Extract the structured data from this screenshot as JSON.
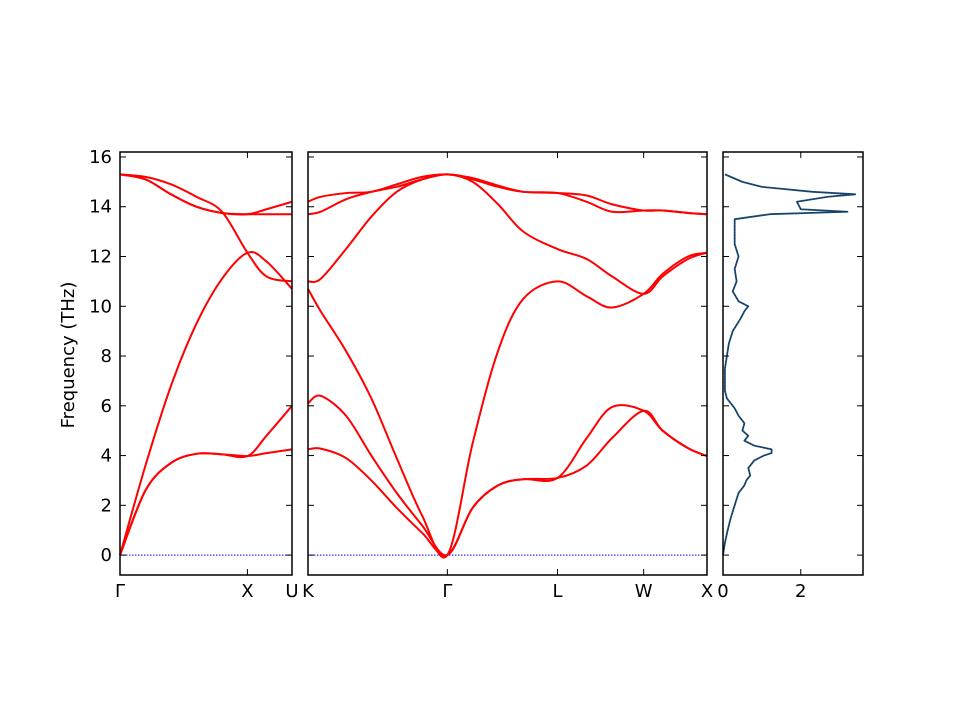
{
  "chart_data": {
    "type": "line",
    "ylabel": "Frequency (THz)",
    "ylim": [
      -0.8,
      16.2
    ],
    "y_ticks": [
      "0",
      "2",
      "4",
      "6",
      "8",
      "10",
      "12",
      "14",
      "16"
    ],
    "colors": {
      "bands": "#ff0000",
      "zero_line": "#0000ff",
      "dos": "#1f4e79"
    },
    "band_panels": [
      {
        "path": [
          "Γ",
          "X",
          "U"
        ],
        "tick_labels": [
          "Γ",
          "X",
          "U"
        ],
        "x_range": [
          0,
          1.35
        ],
        "tick_positions": [
          0,
          1.0,
          1.35
        ],
        "bands": [
          {
            "x": [
              0,
              0.2,
              0.4,
              0.6,
              0.8,
              1.0,
              1.15,
              1.35
            ],
            "y": [
              0,
              2.6,
              3.7,
              4.07,
              4.05,
              3.98,
              4.1,
              4.25
            ]
          },
          {
            "x": [
              0,
              0.2,
              0.4,
              0.6,
              0.8,
              1.0,
              1.15,
              1.35
            ],
            "y": [
              0,
              2.6,
              3.7,
              4.07,
              4.05,
              3.98,
              4.8,
              6.0
            ]
          },
          {
            "x": [
              0,
              0.2,
              0.4,
              0.6,
              0.8,
              1.0,
              1.15,
              1.35
            ],
            "y": [
              0,
              3.6,
              6.8,
              9.3,
              11.1,
              12.15,
              11.8,
              10.7
            ]
          },
          {
            "x": [
              0,
              0.2,
              0.4,
              0.6,
              0.8,
              1.0,
              1.15,
              1.35
            ],
            "y": [
              15.3,
              15.2,
              14.9,
              14.4,
              13.8,
              12.15,
              11.2,
              11.0
            ]
          },
          {
            "x": [
              0,
              0.2,
              0.4,
              0.6,
              0.8,
              1.0,
              1.15,
              1.35
            ],
            "y": [
              15.3,
              15.1,
              14.5,
              14.0,
              13.75,
              13.7,
              13.7,
              13.7
            ]
          },
          {
            "x": [
              0,
              0.2,
              0.4,
              0.6,
              0.8,
              1.0,
              1.15,
              1.35
            ],
            "y": [
              15.3,
              15.1,
              14.5,
              14.0,
              13.75,
              13.7,
              13.9,
              14.2
            ]
          }
        ]
      },
      {
        "path": [
          "K",
          "Γ",
          "L",
          "W",
          "X"
        ],
        "tick_labels": [
          "K",
          "Γ",
          "L",
          "W",
          "X"
        ],
        "x_range": [
          0,
          3.15
        ],
        "tick_positions": [
          0,
          1.1,
          1.97,
          2.65,
          3.15
        ],
        "bands": [
          {
            "x": [
              0,
              0.1,
              0.3,
              0.5,
              0.7,
              0.9,
              1.1,
              1.3,
              1.5,
              1.7,
              1.97,
              2.2,
              2.4,
              2.65,
              2.8,
              3.0,
              3.15
            ],
            "y": [
              4.25,
              4.28,
              3.9,
              3.0,
              1.9,
              0.9,
              0,
              1.9,
              2.8,
              3.05,
              3.1,
              3.6,
              4.7,
              5.8,
              5.0,
              4.3,
              3.98
            ]
          },
          {
            "x": [
              0,
              0.1,
              0.3,
              0.5,
              0.7,
              0.9,
              1.1,
              1.3,
              1.5,
              1.7,
              1.97,
              2.2,
              2.4,
              2.65,
              2.8,
              3.0,
              3.15
            ],
            "y": [
              6.1,
              6.4,
              5.6,
              4.0,
              2.5,
              1.2,
              0,
              1.9,
              2.8,
              3.05,
              3.1,
              4.7,
              5.95,
              5.8,
              5.0,
              4.3,
              3.98
            ]
          },
          {
            "x": [
              0,
              0.1,
              0.3,
              0.5,
              0.7,
              0.9,
              1.1,
              1.3,
              1.5,
              1.7,
              1.97,
              2.2,
              2.4,
              2.65,
              2.8,
              3.0,
              3.15
            ],
            "y": [
              10.7,
              9.8,
              8.2,
              6.3,
              3.9,
              1.6,
              0,
              4.5,
              8.2,
              10.3,
              11.0,
              10.4,
              9.95,
              10.5,
              11.3,
              12.0,
              12.15
            ]
          },
          {
            "x": [
              0,
              0.1,
              0.3,
              0.5,
              0.7,
              0.9,
              1.1,
              1.3,
              1.5,
              1.7,
              1.97,
              2.2,
              2.4,
              2.65,
              2.8,
              3.0,
              3.15
            ],
            "y": [
              11.0,
              11.1,
              12.3,
              13.6,
              14.6,
              15.1,
              15.3,
              15.0,
              14.1,
              13.0,
              12.3,
              11.9,
              11.2,
              10.5,
              11.2,
              11.9,
              12.15
            ]
          },
          {
            "x": [
              0,
              0.1,
              0.3,
              0.5,
              0.7,
              0.9,
              1.1,
              1.3,
              1.5,
              1.7,
              1.97,
              2.2,
              2.4,
              2.65,
              2.8,
              3.0,
              3.15
            ],
            "y": [
              13.7,
              13.8,
              14.3,
              14.6,
              14.8,
              15.1,
              15.3,
              15.1,
              14.8,
              14.6,
              14.55,
              14.45,
              14.1,
              13.85,
              13.85,
              13.75,
              13.7
            ]
          },
          {
            "x": [
              0,
              0.1,
              0.3,
              0.5,
              0.7,
              0.9,
              1.1,
              1.3,
              1.5,
              1.7,
              1.97,
              2.2,
              2.4,
              2.65,
              2.8,
              3.0,
              3.15
            ],
            "y": [
              14.2,
              14.4,
              14.55,
              14.6,
              14.9,
              15.2,
              15.3,
              15.15,
              14.85,
              14.6,
              14.55,
              14.2,
              13.8,
              13.85,
              13.85,
              13.75,
              13.7
            ]
          }
        ]
      }
    ],
    "dos": {
      "xlabel": "",
      "x_ticks": [
        "0",
        "2"
      ],
      "xlim": [
        0,
        3.6
      ],
      "frequency": [
        0,
        0.5,
        1.0,
        1.5,
        2.0,
        2.5,
        2.8,
        3.0,
        3.2,
        3.5,
        3.8,
        4.0,
        4.1,
        4.25,
        4.4,
        4.6,
        4.8,
        5.0,
        5.3,
        5.6,
        5.9,
        6.1,
        6.3,
        6.6,
        7.0,
        7.5,
        8.0,
        8.5,
        9.0,
        9.5,
        9.8,
        10.0,
        10.2,
        10.6,
        11.0,
        11.5,
        12.0,
        12.5,
        13.0,
        13.5,
        13.7,
        13.8,
        13.9,
        14.2,
        14.4,
        14.5,
        14.6,
        14.8,
        15.0,
        15.3
      ],
      "dos": [
        0,
        0.05,
        0.12,
        0.2,
        0.3,
        0.4,
        0.55,
        0.6,
        0.7,
        0.65,
        0.8,
        1.05,
        1.25,
        1.25,
        0.8,
        0.55,
        0.65,
        0.5,
        0.55,
        0.4,
        0.3,
        0.2,
        0.1,
        0.05,
        0.05,
        0.05,
        0.1,
        0.15,
        0.25,
        0.45,
        0.55,
        0.65,
        0.4,
        0.25,
        0.35,
        0.3,
        0.4,
        0.3,
        0.3,
        0.3,
        1.2,
        3.2,
        2.0,
        1.9,
        2.7,
        3.4,
        2.3,
        1.0,
        0.5,
        0.05
      ]
    }
  }
}
